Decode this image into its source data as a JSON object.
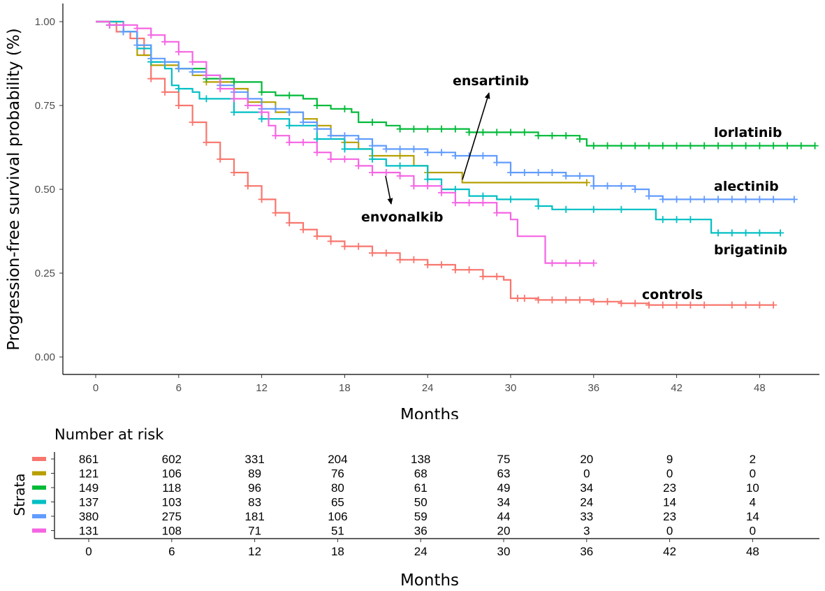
{
  "chart_data": {
    "type": "line",
    "subtype": "kaplan-meier step",
    "xlabel": "Months",
    "ylabel": "Progression-free survival probability (%)",
    "xlim": [
      -2,
      52.5
    ],
    "ylim": [
      -0.05,
      1.055
    ],
    "x_ticks": [
      "0",
      "6",
      "12",
      "18",
      "24",
      "30",
      "36",
      "42",
      "48"
    ],
    "y_ticks": [
      "0.00",
      "0.25",
      "0.50",
      "0.75",
      "1.00"
    ],
    "grid": false,
    "series": [
      {
        "name": "controls",
        "color": "#F8766D",
        "points": [
          [
            0,
            1
          ],
          [
            1.5,
            0.97
          ],
          [
            2.5,
            0.95
          ],
          [
            3.5,
            0.9
          ],
          [
            4,
            0.83
          ],
          [
            5,
            0.79
          ],
          [
            6,
            0.75
          ],
          [
            7,
            0.7
          ],
          [
            8,
            0.64
          ],
          [
            9,
            0.59
          ],
          [
            10,
            0.55
          ],
          [
            11,
            0.51
          ],
          [
            12,
            0.47
          ],
          [
            13,
            0.43
          ],
          [
            14,
            0.4
          ],
          [
            15,
            0.38
          ],
          [
            16,
            0.36
          ],
          [
            17,
            0.345
          ],
          [
            18,
            0.33
          ],
          [
            20,
            0.31
          ],
          [
            22,
            0.29
          ],
          [
            24,
            0.275
          ],
          [
            26,
            0.26
          ],
          [
            28,
            0.24
          ],
          [
            29.5,
            0.23
          ],
          [
            30,
            0.175
          ],
          [
            32,
            0.17
          ],
          [
            36,
            0.165
          ],
          [
            38,
            0.16
          ],
          [
            40,
            0.155
          ],
          [
            49,
            0.155
          ]
        ],
        "censor": [
          4,
          5,
          6,
          7,
          8,
          9,
          10,
          11,
          12,
          13,
          14,
          15,
          16,
          17,
          18,
          19,
          20,
          21,
          22,
          23,
          24,
          25,
          26,
          27,
          28,
          29,
          30.5,
          31,
          32,
          33,
          34,
          35,
          36,
          37,
          38,
          39,
          40,
          41,
          42,
          43,
          44,
          46,
          47,
          48,
          49
        ]
      },
      {
        "name": "ensartinib",
        "color": "#B79F00",
        "points": [
          [
            0,
            1
          ],
          [
            2,
            0.97
          ],
          [
            3,
            0.9
          ],
          [
            4,
            0.87
          ],
          [
            6,
            0.86
          ],
          [
            7,
            0.84
          ],
          [
            8,
            0.82
          ],
          [
            10,
            0.8
          ],
          [
            11,
            0.76
          ],
          [
            13,
            0.73
          ],
          [
            15,
            0.71
          ],
          [
            16,
            0.69
          ],
          [
            17,
            0.66
          ],
          [
            18,
            0.64
          ],
          [
            19,
            0.62
          ],
          [
            20,
            0.6
          ],
          [
            23,
            0.57
          ],
          [
            24,
            0.55
          ],
          [
            26.5,
            0.52
          ],
          [
            35.5,
            0.52
          ]
        ],
        "censor": [
          6,
          8,
          10,
          12,
          14,
          16,
          18,
          20,
          22,
          24,
          35.5
        ]
      },
      {
        "name": "lorlatinib",
        "color": "#00BA38",
        "points": [
          [
            0,
            1
          ],
          [
            1,
            0.99
          ],
          [
            2,
            0.97
          ],
          [
            3,
            0.93
          ],
          [
            4,
            0.88
          ],
          [
            6,
            0.86
          ],
          [
            8,
            0.83
          ],
          [
            10,
            0.82
          ],
          [
            11.5,
            0.82
          ],
          [
            12,
            0.79
          ],
          [
            13,
            0.78
          ],
          [
            15,
            0.77
          ],
          [
            16,
            0.75
          ],
          [
            17,
            0.74
          ],
          [
            18.5,
            0.73
          ],
          [
            19,
            0.7
          ],
          [
            21,
            0.69
          ],
          [
            22,
            0.68
          ],
          [
            26,
            0.68
          ],
          [
            27,
            0.67
          ],
          [
            31,
            0.67
          ],
          [
            32,
            0.66
          ],
          [
            34,
            0.66
          ],
          [
            35,
            0.65
          ],
          [
            35.5,
            0.63
          ],
          [
            52,
            0.63
          ]
        ],
        "censor": [
          1,
          2,
          4,
          6,
          8,
          10,
          12,
          14,
          16,
          18,
          20,
          22,
          23,
          24,
          25,
          26,
          27,
          28,
          29,
          30,
          31,
          32,
          33,
          34,
          35,
          36,
          37,
          38,
          39,
          40,
          41,
          42,
          43,
          44,
          45,
          46,
          47,
          48,
          49,
          50,
          51,
          52
        ]
      },
      {
        "name": "brigatinib",
        "color": "#00BFC4",
        "points": [
          [
            0,
            1
          ],
          [
            2,
            0.97
          ],
          [
            3,
            0.92
          ],
          [
            4,
            0.88
          ],
          [
            5,
            0.86
          ],
          [
            5.5,
            0.81
          ],
          [
            6,
            0.8
          ],
          [
            7,
            0.79
          ],
          [
            7.5,
            0.77
          ],
          [
            10,
            0.73
          ],
          [
            12,
            0.71
          ],
          [
            14,
            0.69
          ],
          [
            16,
            0.65
          ],
          [
            18,
            0.62
          ],
          [
            20,
            0.59
          ],
          [
            21,
            0.57
          ],
          [
            24,
            0.53
          ],
          [
            25,
            0.5
          ],
          [
            27,
            0.48
          ],
          [
            29,
            0.47
          ],
          [
            31,
            0.47
          ],
          [
            32,
            0.45
          ],
          [
            33,
            0.44
          ],
          [
            40,
            0.44
          ],
          [
            40.5,
            0.41
          ],
          [
            44,
            0.41
          ],
          [
            44.5,
            0.37
          ],
          [
            49.5,
            0.37
          ]
        ],
        "censor": [
          2,
          4,
          6,
          8,
          10,
          12,
          14,
          16,
          18,
          20,
          22,
          24,
          26,
          28,
          30,
          32,
          34,
          36,
          38,
          41,
          42,
          43,
          45,
          46,
          47,
          48,
          49.5
        ]
      },
      {
        "name": "alectinib",
        "color": "#619CFF",
        "points": [
          [
            0,
            1
          ],
          [
            1,
            0.99
          ],
          [
            2,
            0.97
          ],
          [
            3,
            0.93
          ],
          [
            4,
            0.89
          ],
          [
            5,
            0.88
          ],
          [
            6,
            0.86
          ],
          [
            7,
            0.85
          ],
          [
            8,
            0.84
          ],
          [
            9,
            0.81
          ],
          [
            10,
            0.79
          ],
          [
            11,
            0.77
          ],
          [
            12,
            0.74
          ],
          [
            14,
            0.73
          ],
          [
            15,
            0.7
          ],
          [
            16,
            0.68
          ],
          [
            17,
            0.66
          ],
          [
            19,
            0.65
          ],
          [
            20,
            0.63
          ],
          [
            21,
            0.62
          ],
          [
            23,
            0.62
          ],
          [
            24,
            0.61
          ],
          [
            25.5,
            0.61
          ],
          [
            26,
            0.6
          ],
          [
            28,
            0.6
          ],
          [
            29,
            0.58
          ],
          [
            30,
            0.55
          ],
          [
            33,
            0.55
          ],
          [
            34,
            0.54
          ],
          [
            35.5,
            0.54
          ],
          [
            36,
            0.51
          ],
          [
            38,
            0.51
          ],
          [
            39,
            0.5
          ],
          [
            40,
            0.48
          ],
          [
            41,
            0.47
          ],
          [
            50.5,
            0.47
          ]
        ],
        "censor": [
          1,
          2,
          3,
          4,
          5,
          6,
          7,
          8,
          9,
          10,
          11,
          12,
          13,
          14,
          15,
          16,
          17,
          18,
          19,
          20,
          21,
          22,
          23,
          24,
          25,
          26,
          27,
          28,
          29,
          30,
          31,
          32,
          33,
          34,
          35,
          36,
          37,
          38,
          39,
          40,
          41,
          42,
          43,
          44,
          45,
          46,
          47,
          48,
          49,
          50.5
        ]
      },
      {
        "name": "envonalkib",
        "color": "#F564E3",
        "points": [
          [
            0,
            1
          ],
          [
            1,
            0.99
          ],
          [
            2,
            0.99
          ],
          [
            3,
            0.98
          ],
          [
            4,
            0.96
          ],
          [
            5,
            0.94
          ],
          [
            6,
            0.91
          ],
          [
            7,
            0.88
          ],
          [
            8,
            0.84
          ],
          [
            9,
            0.8
          ],
          [
            10,
            0.77
          ],
          [
            11,
            0.75
          ],
          [
            12,
            0.73
          ],
          [
            12.5,
            0.69
          ],
          [
            13,
            0.66
          ],
          [
            14,
            0.64
          ],
          [
            16,
            0.61
          ],
          [
            17,
            0.59
          ],
          [
            19,
            0.57
          ],
          [
            20,
            0.55
          ],
          [
            22,
            0.54
          ],
          [
            23,
            0.51
          ],
          [
            25,
            0.49
          ],
          [
            26,
            0.46
          ],
          [
            29,
            0.43
          ],
          [
            30,
            0.41
          ],
          [
            30.5,
            0.36
          ],
          [
            32,
            0.36
          ],
          [
            32.5,
            0.28
          ],
          [
            36,
            0.28
          ]
        ],
        "censor": [
          1,
          2,
          3,
          4,
          5,
          6,
          7,
          8,
          9,
          10,
          11,
          12,
          13,
          14,
          15,
          16,
          17,
          18,
          19,
          20,
          21,
          22,
          23,
          24,
          25,
          26,
          27,
          28,
          29,
          33,
          34,
          35,
          36
        ]
      }
    ],
    "annotations": {
      "ensartinib": "ensartinib",
      "lorlatinib": "lorlatinib",
      "alectinib": "alectinib",
      "brigatinib": "brigatinib",
      "controls": "controls",
      "envonalkib": "envonalkib"
    },
    "risk_table": {
      "title": "Number at risk",
      "ylabel": "Strata",
      "xlabel": "Months",
      "rows": [
        {
          "color": "#F8766D",
          "values": [
            "861",
            "602",
            "331",
            "204",
            "138",
            "75",
            "20",
            "9",
            "2"
          ]
        },
        {
          "color": "#B79F00",
          "values": [
            "121",
            "106",
            "89",
            "76",
            "68",
            "63",
            "0",
            "0",
            "0"
          ]
        },
        {
          "color": "#00BA38",
          "values": [
            "149",
            "118",
            "96",
            "80",
            "61",
            "49",
            "34",
            "23",
            "10"
          ]
        },
        {
          "color": "#00BFC4",
          "values": [
            "137",
            "103",
            "83",
            "65",
            "50",
            "34",
            "24",
            "14",
            "4"
          ]
        },
        {
          "color": "#619CFF",
          "values": [
            "380",
            "275",
            "181",
            "106",
            "59",
            "44",
            "33",
            "23",
            "14"
          ]
        },
        {
          "color": "#F564E3",
          "values": [
            "131",
            "108",
            "71",
            "51",
            "36",
            "20",
            "3",
            "0",
            "0"
          ]
        }
      ]
    }
  }
}
